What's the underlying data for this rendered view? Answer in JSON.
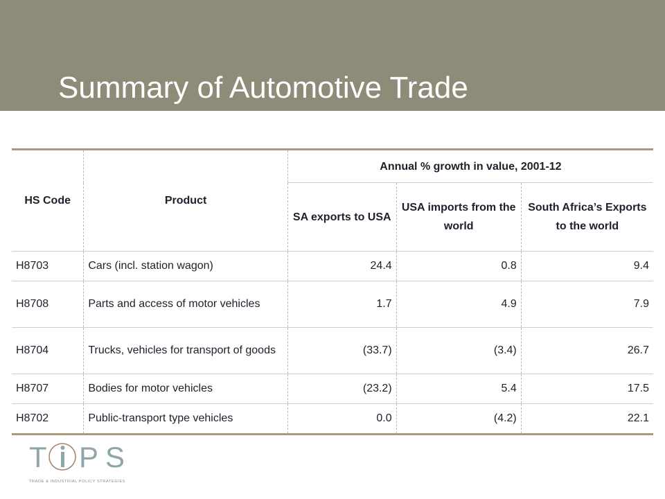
{
  "slide": {
    "title": "Summary of Automotive Trade"
  },
  "table": {
    "headers": {
      "hs_code": "HS Code",
      "product": "Product",
      "group": "Annual % growth in value, 2001-12",
      "sa_exports": "SA exports to USA",
      "usa_imports": "USA imports from the world",
      "za_exports": "South Africa’s Exports to the world"
    },
    "rows": [
      {
        "code": "H8703",
        "product": "Cars (incl. station wagon)",
        "sa": "24.4",
        "usa": "0.8",
        "za": "9.4"
      },
      {
        "code": "H8708",
        "product": "Parts and access of motor vehicles",
        "sa": "1.7",
        "usa": "4.9",
        "za": "7.9"
      },
      {
        "code": "H8704",
        "product": "Trucks, vehicles for transport of goods",
        "sa": "(33.7)",
        "usa": "(3.4)",
        "za": "26.7"
      },
      {
        "code": "H8707",
        "product": "Bodies for motor vehicles",
        "sa": "(23.2)",
        "usa": "5.4",
        "za": "17.5"
      },
      {
        "code": "H8702",
        "product": "Public-transport type vehicles",
        "sa": "0.0",
        "usa": "(4.2)",
        "za": "22.1"
      }
    ]
  },
  "logo": {
    "wordmark": "TIPS",
    "tagline": "TRADE & INDUSTRIAL POLICY STRATEGIES",
    "colors": {
      "letters": "#8fa5a9",
      "circle": "#a0826d"
    }
  }
}
